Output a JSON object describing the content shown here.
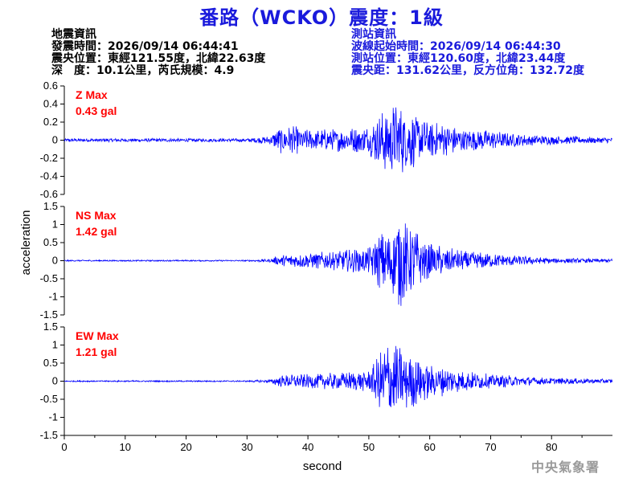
{
  "title": "番路（WCKO）震度：1級",
  "earthquake_info": {
    "heading": "地震資訊",
    "origin_time": "發震時間：2026/09/14 06:44:41",
    "epicenter": "震央位置：東經121.55度，北緯22.63度",
    "depth_magnitude": "深　度：10.1公里，芮氏規模：4.9"
  },
  "station_info": {
    "heading": "測站資訊",
    "wave_start": "波線起始時間：2026/09/14 06:44:30",
    "location": "測站位置：東經120.60度，北緯23.44度",
    "distance": "震央距：131.62公里，反方位角：132.72度"
  },
  "watermark": "中央氣象署",
  "colors": {
    "trace": "#0000ff",
    "label": "#ff0000",
    "title": "#1a1adc",
    "axis": "#000000"
  },
  "chart_data": {
    "type": "line",
    "xlabel": "second",
    "ylabel": "acceleration",
    "x_range": [
      0,
      90
    ],
    "x_ticks": [
      "0",
      "10",
      "20",
      "30",
      "40",
      "50",
      "60",
      "70",
      "80"
    ],
    "grid": false,
    "panels": [
      {
        "name": "Z",
        "label": "Z Max",
        "max_label": "0.43 gal",
        "ylim": [
          -0.6,
          0.6
        ],
        "y_ticks": [
          "0.6",
          "0.4",
          "0.2",
          "0",
          "-0.2",
          "-0.4",
          "-0.6"
        ],
        "y_tick_values": [
          0.6,
          0.4,
          0.2,
          0,
          -0.2,
          -0.4,
          -0.6
        ],
        "envelope": {
          "x": [
            0,
            30,
            34,
            35,
            38,
            40,
            45,
            50,
            52,
            54,
            56,
            58,
            60,
            65,
            70,
            75,
            80,
            90
          ],
          "amplitude": [
            0.02,
            0.02,
            0.05,
            0.15,
            0.16,
            0.12,
            0.13,
            0.16,
            0.33,
            0.43,
            0.37,
            0.28,
            0.22,
            0.14,
            0.11,
            0.07,
            0.05,
            0.03
          ]
        }
      },
      {
        "name": "NS",
        "label": "NS Max",
        "max_label": "1.42 gal",
        "ylim": [
          -1.5,
          1.5
        ],
        "y_ticks": [
          "1.5",
          "1",
          "0.5",
          "0",
          "-0.5",
          "-1",
          "-1.5"
        ],
        "y_tick_values": [
          1.5,
          1,
          0.5,
          0,
          -0.5,
          -1,
          -1.5
        ],
        "envelope": {
          "x": [
            0,
            30,
            34,
            35,
            38,
            40,
            45,
            50,
            52,
            54,
            55,
            56,
            58,
            60,
            65,
            70,
            75,
            80,
            90
          ],
          "amplitude": [
            0.02,
            0.02,
            0.05,
            0.15,
            0.2,
            0.22,
            0.28,
            0.38,
            0.85,
            1.05,
            1.42,
            1.1,
            0.8,
            0.5,
            0.3,
            0.2,
            0.13,
            0.08,
            0.05
          ]
        }
      },
      {
        "name": "EW",
        "label": "EW Max",
        "max_label": "1.21 gal",
        "ylim": [
          -1.5,
          1.5
        ],
        "y_ticks": [
          "1.5",
          "1",
          "0.5",
          "0",
          "-0.5",
          "-1",
          "-1.5"
        ],
        "y_tick_values": [
          1.5,
          1,
          0.5,
          0,
          -0.5,
          -1,
          -1.5
        ],
        "envelope": {
          "x": [
            0,
            30,
            34,
            35,
            38,
            40,
            45,
            50,
            52,
            53,
            55,
            57,
            60,
            65,
            70,
            75,
            80,
            90
          ],
          "amplitude": [
            0.02,
            0.02,
            0.05,
            0.15,
            0.2,
            0.2,
            0.24,
            0.3,
            0.85,
            1.21,
            1.0,
            0.75,
            0.5,
            0.3,
            0.2,
            0.14,
            0.09,
            0.06
          ]
        }
      }
    ]
  }
}
